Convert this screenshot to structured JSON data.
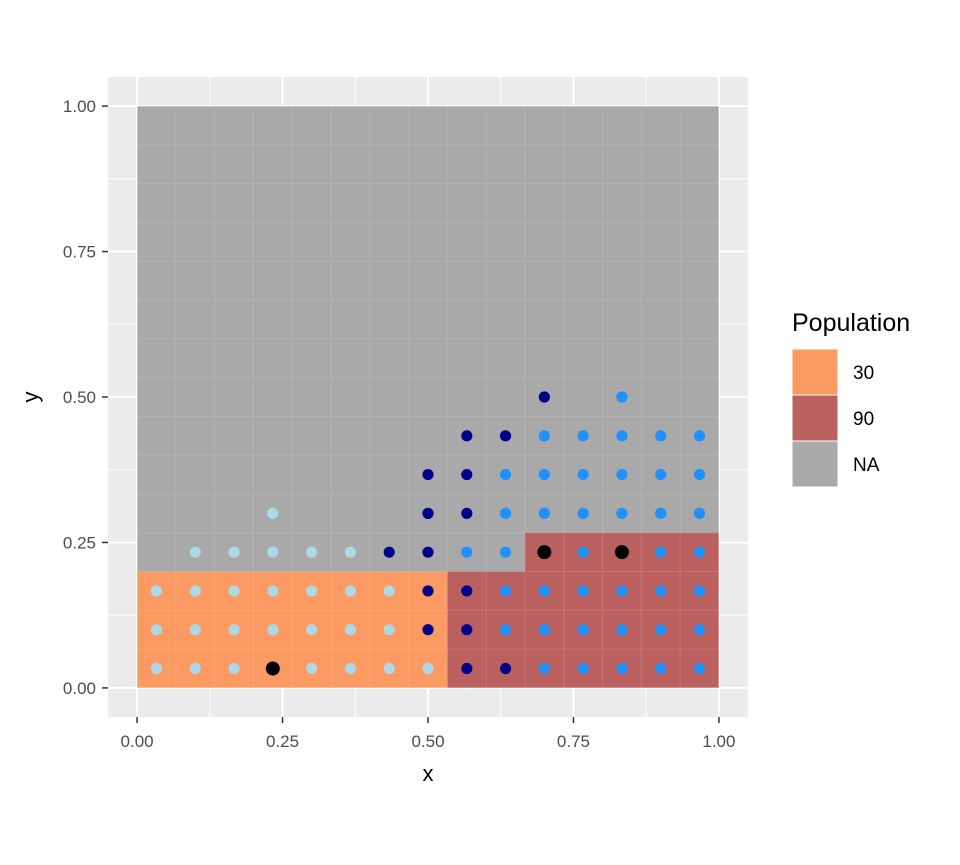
{
  "chart_data": {
    "type": "scatter",
    "xlabel": "x",
    "ylabel": "y",
    "xlim": [
      -0.05,
      1.05
    ],
    "ylim": [
      -0.05,
      1.05
    ],
    "x_ticks": [
      "0.00",
      "0.25",
      "0.50",
      "0.75",
      "1.00"
    ],
    "y_ticks": [
      "0.00",
      "0.25",
      "0.50",
      "0.75",
      "1.00"
    ],
    "grid": true,
    "panel_background": "#EBEBEB",
    "legend": {
      "title": "Population",
      "position": "right",
      "entries": [
        {
          "label": "30",
          "color": "#FB9A62"
        },
        {
          "label": "90",
          "color": "#BA6160"
        },
        {
          "label": "NA",
          "color": "#A9A9A9"
        }
      ]
    },
    "regions": [
      {
        "name": "NA",
        "x": [
          0,
          1
        ],
        "y": [
          0,
          1
        ],
        "color": "#A9A9A9"
      },
      {
        "name": "30",
        "x": [
          0,
          0.5333
        ],
        "y": [
          0,
          0.2
        ],
        "color": "#FB9A62"
      },
      {
        "name": "90",
        "x": [
          0.5333,
          0.6667
        ],
        "y": [
          0,
          0.2
        ],
        "color": "#BA6160"
      },
      {
        "name": "90",
        "x": [
          0.6667,
          1
        ],
        "y": [
          0,
          0.2667
        ],
        "color": "#BA6160"
      }
    ],
    "point_series": [
      {
        "color": "#ADD8E6",
        "points": [
          [
            0.0333,
            0.0333
          ],
          [
            0.1,
            0.0333
          ],
          [
            0.1667,
            0.0333
          ],
          [
            0.3,
            0.0333
          ],
          [
            0.3667,
            0.0333
          ],
          [
            0.4333,
            0.0333
          ],
          [
            0.5,
            0.0333
          ],
          [
            0.0333,
            0.1
          ],
          [
            0.1,
            0.1
          ],
          [
            0.1667,
            0.1
          ],
          [
            0.2333,
            0.1
          ],
          [
            0.3,
            0.1
          ],
          [
            0.3667,
            0.1
          ],
          [
            0.4333,
            0.1
          ],
          [
            0.0333,
            0.1667
          ],
          [
            0.1,
            0.1667
          ],
          [
            0.1667,
            0.1667
          ],
          [
            0.2333,
            0.1667
          ],
          [
            0.3,
            0.1667
          ],
          [
            0.3667,
            0.1667
          ],
          [
            0.4333,
            0.1667
          ],
          [
            0.1,
            0.2333
          ],
          [
            0.1667,
            0.2333
          ],
          [
            0.2333,
            0.2333
          ],
          [
            0.3,
            0.2333
          ],
          [
            0.3667,
            0.2333
          ],
          [
            0.2333,
            0.3
          ]
        ]
      },
      {
        "color": "#00008B",
        "points": [
          [
            0.5667,
            0.0333
          ],
          [
            0.6333,
            0.0333
          ],
          [
            0.5,
            0.1
          ],
          [
            0.5667,
            0.1
          ],
          [
            0.5,
            0.1667
          ],
          [
            0.5667,
            0.1667
          ],
          [
            0.4333,
            0.2333
          ],
          [
            0.5,
            0.2333
          ],
          [
            0.5,
            0.3
          ],
          [
            0.5667,
            0.3
          ],
          [
            0.5,
            0.3667
          ],
          [
            0.5667,
            0.3667
          ],
          [
            0.5667,
            0.4333
          ],
          [
            0.6333,
            0.4333
          ],
          [
            0.7,
            0.5
          ]
        ]
      },
      {
        "color": "#1E90FF",
        "points": [
          [
            0.7,
            0.0333
          ],
          [
            0.7667,
            0.0333
          ],
          [
            0.8333,
            0.0333
          ],
          [
            0.9,
            0.0333
          ],
          [
            0.9667,
            0.0333
          ],
          [
            0.6333,
            0.1
          ],
          [
            0.7,
            0.1
          ],
          [
            0.7667,
            0.1
          ],
          [
            0.8333,
            0.1
          ],
          [
            0.9,
            0.1
          ],
          [
            0.9667,
            0.1
          ],
          [
            0.6333,
            0.1667
          ],
          [
            0.7,
            0.1667
          ],
          [
            0.7667,
            0.1667
          ],
          [
            0.8333,
            0.1667
          ],
          [
            0.9,
            0.1667
          ],
          [
            0.9667,
            0.1667
          ],
          [
            0.5667,
            0.2333
          ],
          [
            0.6333,
            0.2333
          ],
          [
            0.7667,
            0.2333
          ],
          [
            0.9,
            0.2333
          ],
          [
            0.9667,
            0.2333
          ],
          [
            0.6333,
            0.3
          ],
          [
            0.7,
            0.3
          ],
          [
            0.7667,
            0.3
          ],
          [
            0.8333,
            0.3
          ],
          [
            0.9,
            0.3
          ],
          [
            0.9667,
            0.3
          ],
          [
            0.6333,
            0.3667
          ],
          [
            0.7,
            0.3667
          ],
          [
            0.7667,
            0.3667
          ],
          [
            0.8333,
            0.3667
          ],
          [
            0.9,
            0.3667
          ],
          [
            0.9667,
            0.3667
          ],
          [
            0.7,
            0.4333
          ],
          [
            0.7667,
            0.4333
          ],
          [
            0.8333,
            0.4333
          ],
          [
            0.9,
            0.4333
          ],
          [
            0.9667,
            0.4333
          ],
          [
            0.8333,
            0.5
          ]
        ]
      },
      {
        "color": "#000000",
        "size": "large",
        "points": [
          [
            0.2333,
            0.0333
          ],
          [
            0.7,
            0.2333
          ],
          [
            0.8333,
            0.2333
          ]
        ]
      }
    ]
  }
}
